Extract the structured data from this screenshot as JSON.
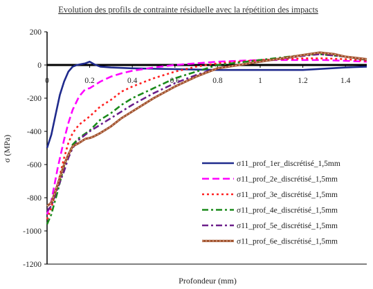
{
  "chart_data": {
    "type": "line",
    "title": "Evolution des profils de contrainte résiduelle avec la répétition des impacts",
    "xlabel": "Profondeur (mm)",
    "ylabel": "σ (MPa)",
    "xlim": [
      0,
      1.5
    ],
    "ylim": [
      -1200,
      200
    ],
    "x_ticks": [
      "0",
      "0.2",
      "0.4",
      "0.6",
      "0.8",
      "1",
      "1.2",
      "1.4"
    ],
    "y_ticks": [
      "200",
      "0",
      "-200",
      "-400",
      "-600",
      "-800",
      "-1000",
      "-1200"
    ],
    "grid": false,
    "legend_position": "bottom-right",
    "series": [
      {
        "name": "σ11_prof_1er_discrétisé_1,5mm",
        "color": "#1f2a8c",
        "style": "solid",
        "x": [
          0,
          0.02,
          0.04,
          0.06,
          0.08,
          0.1,
          0.12,
          0.14,
          0.16,
          0.18,
          0.2,
          0.22,
          0.25,
          0.3,
          0.4,
          0.6,
          0.8,
          1.0,
          1.2,
          1.4,
          1.5
        ],
        "y": [
          -500,
          -420,
          -300,
          -180,
          -100,
          -40,
          -10,
          0,
          5,
          10,
          20,
          5,
          -10,
          -15,
          -20,
          -25,
          -30,
          -30,
          -30,
          -15,
          -10
        ]
      },
      {
        "name": "σ11_prof_2e_discrétisé_1,5mm",
        "color": "#ff00ff",
        "style": "dash",
        "x": [
          0,
          0.02,
          0.05,
          0.08,
          0.1,
          0.12,
          0.15,
          0.18,
          0.2,
          0.25,
          0.3,
          0.35,
          0.4,
          0.5,
          0.6,
          0.8,
          1.0,
          1.2,
          1.3,
          1.4,
          1.5
        ],
        "y": [
          -900,
          -820,
          -620,
          -450,
          -350,
          -270,
          -190,
          -145,
          -140,
          -100,
          -70,
          -50,
          -35,
          -15,
          0,
          20,
          30,
          30,
          30,
          25,
          20
        ]
      },
      {
        "name": "σ11_prof_3e_discrétisé_1,5mm",
        "color": "#ff2020",
        "style": "dot",
        "x": [
          0,
          0.02,
          0.05,
          0.08,
          0.1,
          0.12,
          0.15,
          0.2,
          0.25,
          0.3,
          0.35,
          0.4,
          0.5,
          0.6,
          0.7,
          0.8,
          1.0,
          1.2,
          1.3,
          1.4,
          1.5
        ],
        "y": [
          -930,
          -860,
          -720,
          -560,
          -470,
          -410,
          -360,
          -310,
          -250,
          -210,
          -160,
          -130,
          -80,
          -40,
          -10,
          10,
          30,
          40,
          40,
          35,
          25
        ]
      },
      {
        "name": "σ11_prof_4e_discrétisé_1,5mm",
        "color": "#1a8a1a",
        "style": "dashdot",
        "x": [
          0,
          0.02,
          0.05,
          0.08,
          0.1,
          0.12,
          0.15,
          0.2,
          0.25,
          0.3,
          0.35,
          0.4,
          0.5,
          0.6,
          0.7,
          0.8,
          1.0,
          1.2,
          1.28,
          1.4,
          1.5
        ],
        "y": [
          -960,
          -900,
          -760,
          -610,
          -540,
          -480,
          -440,
          -395,
          -330,
          -290,
          -240,
          -200,
          -140,
          -80,
          -40,
          0,
          30,
          60,
          65,
          50,
          30
        ]
      },
      {
        "name": "σ11_prof_5e_discrétisé_1,5mm",
        "color": "#6b1f8a",
        "style": "dashdot",
        "x": [
          0,
          0.02,
          0.05,
          0.08,
          0.1,
          0.12,
          0.15,
          0.2,
          0.25,
          0.3,
          0.35,
          0.4,
          0.5,
          0.6,
          0.7,
          0.8,
          1.0,
          1.2,
          1.28,
          1.4,
          1.5
        ],
        "y": [
          -880,
          -850,
          -740,
          -640,
          -560,
          -500,
          -450,
          -400,
          -360,
          -320,
          -280,
          -240,
          -170,
          -110,
          -60,
          -20,
          20,
          55,
          65,
          50,
          30
        ]
      },
      {
        "name": "σ11_prof_6e_discrétisé_1,5mm",
        "color": "#a0522d",
        "style": "bead",
        "x": [
          0,
          0.02,
          0.05,
          0.08,
          0.1,
          0.12,
          0.15,
          0.18,
          0.2,
          0.22,
          0.25,
          0.3,
          0.35,
          0.4,
          0.5,
          0.6,
          0.7,
          0.8,
          0.9,
          1.0,
          1.1,
          1.2,
          1.28,
          1.35,
          1.4,
          1.5
        ],
        "y": [
          -850,
          -830,
          -720,
          -600,
          -540,
          -490,
          -470,
          -445,
          -440,
          -430,
          -410,
          -370,
          -320,
          -280,
          -200,
          -130,
          -70,
          -20,
          0,
          20,
          40,
          60,
          75,
          65,
          50,
          35
        ]
      }
    ]
  }
}
